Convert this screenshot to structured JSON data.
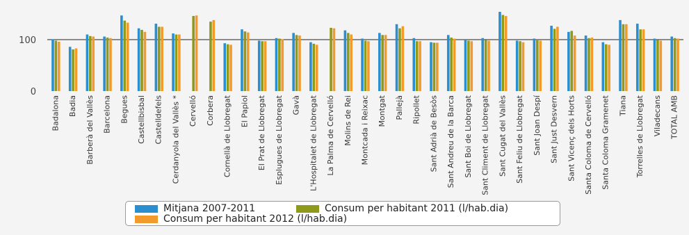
{
  "chart_data": {
    "type": "bar",
    "ylim": [
      0,
      160
    ],
    "yticks": [
      "0",
      "100"
    ],
    "reference_line": 100,
    "categories": [
      "Badalona",
      "Badia",
      "Barberà del Vallès",
      "Barcelona",
      "Begues",
      "Castellbisbal",
      "Castelldefels",
      "Cerdanyola del Vallès *",
      "Cervelló",
      "Corbera",
      "Cornellà de Llobregat",
      "El Papiol",
      "El Prat de Llobregat",
      "Esplugues de Llobregat",
      "Gavà",
      "L'Hospitalet de Llobregat",
      "La Palma de Cervelló",
      "Molins de Rei",
      "Montcada i Reixac",
      "Montgat",
      "Pallejà",
      "Ripollet",
      "Sant Adrià de Besòs",
      "Sant Andreu de la Barca",
      "Sant Boi de Llobregat",
      "Sant Climent de Llobregat",
      "Sant Cugat del Vallès",
      "Sant Feliu de Llobregat",
      "Sant Joan Despí",
      "Sant Just Desvern",
      "Sant Vicenç dels Horts",
      "Santa Coloma de Cervelló",
      "Santa Coloma Gramenet",
      "Tiana",
      "Torrelles de Llobregat",
      "Viladecans",
      "TOTAL AMB"
    ],
    "series": [
      {
        "name": "Mitjana 2007-2011",
        "color": "#2b8fcf",
        "values": [
          101,
          86,
          110,
          106,
          147,
          122,
          131,
          112,
          null,
          null,
          93,
          120,
          98,
          103,
          113,
          95,
          null,
          118,
          102,
          113,
          130,
          103,
          95,
          109,
          100,
          103,
          154,
          98,
          102,
          127,
          115,
          108,
          95,
          138,
          131,
          102,
          106
        ]
      },
      {
        "name": "Consum per habitant 2011 (l/hab.dia)",
        "color": "#8f9a1a",
        "values": [
          98,
          81,
          107,
          104,
          137,
          119,
          125,
          110,
          146,
          135,
          91,
          116,
          97,
          102,
          109,
          92,
          123,
          113,
          98,
          109,
          122,
          97,
          94,
          104,
          98,
          99,
          148,
          97,
          100,
          121,
          117,
          103,
          91,
          130,
          120,
          99,
          103
        ]
      },
      {
        "name": "Consum per habitant 2012 (l/hab.dia)",
        "color": "#f39a2c",
        "values": [
          96,
          83,
          106,
          103,
          133,
          115,
          125,
          110,
          147,
          138,
          90,
          114,
          97,
          101,
          108,
          90,
          122,
          110,
          97,
          109,
          126,
          97,
          94,
          102,
          97,
          98,
          146,
          95,
          98,
          125,
          108,
          104,
          90,
          130,
          120,
          98,
          102
        ]
      }
    ],
    "grid": false,
    "legend_position": "bottom-center"
  },
  "legend": {
    "item1": "Mitjana 2007-2011",
    "item2": "Consum per habitant 2011 (l/hab.dia)",
    "item3": "Consum per habitant 2012 (l/hab.dia)"
  }
}
